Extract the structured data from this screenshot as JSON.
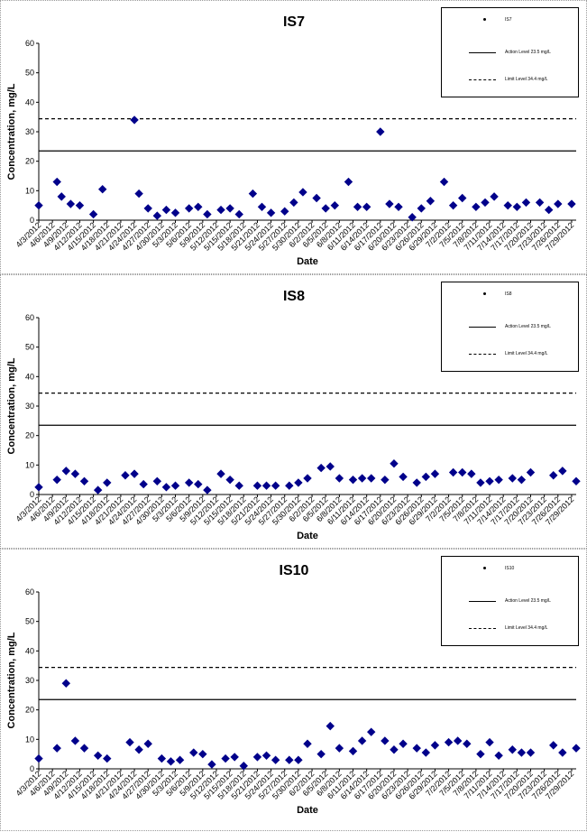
{
  "chart_data": [
    {
      "type": "scatter",
      "title": "IS7",
      "xlabel": "Date",
      "ylabel": "Concentration, mg/L",
      "ylim": [
        0,
        60
      ],
      "yticks": [
        0,
        10,
        20,
        30,
        40,
        50,
        60
      ],
      "xlim": [
        "4/3/2012",
        "7/30/2012"
      ],
      "x_tick_labels": [
        "4/3/2012",
        "4/6/2012",
        "4/9/2012",
        "4/12/2012",
        "4/15/2012",
        "4/18/2012",
        "4/21/2012",
        "4/24/2012",
        "4/27/2012",
        "4/30/2012",
        "5/3/2012",
        "5/6/2012",
        "5/9/2012",
        "5/12/2012",
        "5/15/2012",
        "5/18/2012",
        "5/21/2012",
        "5/24/2012",
        "5/27/2012",
        "5/30/2012",
        "6/2/2012",
        "6/5/2012",
        "6/8/2012",
        "6/11/2012",
        "6/14/2012",
        "6/17/2012",
        "6/20/2012",
        "6/23/2012",
        "6/26/2012",
        "6/29/2012",
        "7/2/2012",
        "7/5/2012",
        "7/8/2012",
        "7/11/2012",
        "7/14/2012",
        "7/17/2012",
        "7/20/2012",
        "7/23/2012",
        "7/26/2012",
        "7/29/2012"
      ],
      "series": [
        {
          "name": "IS7",
          "marker": "diamond",
          "color": "#00008B",
          "x": [
            "4/3/2012",
            "4/7/2012",
            "4/8/2012",
            "4/10/2012",
            "4/12/2012",
            "4/15/2012",
            "4/17/2012",
            "4/24/2012",
            "4/25/2012",
            "4/27/2012",
            "4/29/2012",
            "5/1/2012",
            "5/3/2012",
            "5/6/2012",
            "5/8/2012",
            "5/10/2012",
            "5/13/2012",
            "5/15/2012",
            "5/17/2012",
            "5/20/2012",
            "5/22/2012",
            "5/24/2012",
            "5/27/2012",
            "5/29/2012",
            "5/31/2012",
            "6/3/2012",
            "6/5/2012",
            "6/7/2012",
            "6/10/2012",
            "6/12/2012",
            "6/14/2012",
            "6/17/2012",
            "6/19/2012",
            "6/21/2012",
            "6/24/2012",
            "6/26/2012",
            "6/28/2012",
            "7/1/2012",
            "7/3/2012",
            "7/5/2012",
            "7/8/2012",
            "7/10/2012",
            "7/12/2012",
            "7/15/2012",
            "7/17/2012",
            "7/19/2012",
            "7/22/2012",
            "7/24/2012",
            "7/26/2012",
            "7/29/2012"
          ],
          "y": [
            5,
            13,
            8,
            5.5,
            5,
            2,
            10.5,
            34,
            9,
            4,
            1.5,
            3.5,
            2.5,
            4,
            4.5,
            2,
            3.5,
            4,
            2,
            9,
            4.5,
            2.5,
            3,
            6,
            9.5,
            7.5,
            4,
            5,
            13,
            4.5,
            4.5,
            30,
            5.5,
            4.5,
            1,
            4,
            6.5,
            13,
            5,
            7.5,
            4.5,
            6,
            8,
            5,
            4.5,
            6,
            6,
            3.5,
            5.5,
            5.5
          ]
        }
      ],
      "reference_lines": [
        {
          "name": "Action Level 23.5 mg/L",
          "value": 23.5,
          "style": "solid"
        },
        {
          "name": "Limit Level 34.4 mg/L",
          "value": 34.4,
          "style": "dashed"
        }
      ],
      "legend": {
        "position": "top-right",
        "entries": [
          "IS7",
          "Action Level 23.5 mg/L",
          "Limit Level 34.4 mg/L"
        ]
      },
      "grid": false
    },
    {
      "type": "scatter",
      "title": "IS8",
      "xlabel": "Date",
      "ylabel": "Concentration, mg/L",
      "ylim": [
        0,
        60
      ],
      "yticks": [
        0,
        10,
        20,
        30,
        40,
        50,
        60
      ],
      "xlim": [
        "4/3/2012",
        "7/30/2012"
      ],
      "x_tick_labels": [
        "4/3/2012",
        "4/6/2012",
        "4/9/2012",
        "4/12/2012",
        "4/15/2012",
        "4/18/2012",
        "4/21/2012",
        "4/24/2012",
        "4/27/2012",
        "4/30/2012",
        "5/3/2012",
        "5/6/2012",
        "5/9/2012",
        "5/12/2012",
        "5/15/2012",
        "5/18/2012",
        "5/21/2012",
        "5/24/2012",
        "5/27/2012",
        "5/30/2012",
        "6/2/2012",
        "6/5/2012",
        "6/8/2012",
        "6/11/2012",
        "6/14/2012",
        "6/17/2012",
        "6/20/2012",
        "6/23/2012",
        "6/26/2012",
        "6/29/2012",
        "7/2/2012",
        "7/5/2012",
        "7/8/2012",
        "7/11/2012",
        "7/14/2012",
        "7/17/2012",
        "7/20/2012",
        "7/23/2012",
        "7/26/2012",
        "7/29/2012"
      ],
      "series": [
        {
          "name": "IS8",
          "marker": "diamond",
          "color": "#00008B",
          "x": [
            "4/3/2012",
            "4/7/2012",
            "4/9/2012",
            "4/11/2012",
            "4/13/2012",
            "4/16/2012",
            "4/18/2012",
            "4/22/2012",
            "4/24/2012",
            "4/26/2012",
            "4/29/2012",
            "5/1/2012",
            "5/3/2012",
            "5/6/2012",
            "5/8/2012",
            "5/10/2012",
            "5/13/2012",
            "5/15/2012",
            "5/17/2012",
            "5/21/2012",
            "5/23/2012",
            "5/25/2012",
            "5/28/2012",
            "5/30/2012",
            "6/1/2012",
            "6/4/2012",
            "6/6/2012",
            "6/8/2012",
            "6/11/2012",
            "6/13/2012",
            "6/15/2012",
            "6/18/2012",
            "6/20/2012",
            "6/22/2012",
            "6/25/2012",
            "6/27/2012",
            "6/29/2012",
            "7/3/2012",
            "7/5/2012",
            "7/7/2012",
            "7/9/2012",
            "7/11/2012",
            "7/13/2012",
            "7/16/2012",
            "7/18/2012",
            "7/20/2012",
            "7/25/2012",
            "7/27/2012",
            "7/30/2012"
          ],
          "y": [
            2.5,
            5,
            8,
            7,
            4.5,
            1.5,
            4,
            6.5,
            7,
            3.5,
            4.5,
            2.5,
            3,
            4,
            3.5,
            1.5,
            7,
            5,
            3,
            3,
            3,
            3,
            3,
            4,
            5.5,
            9,
            9.5,
            5.5,
            5,
            5.5,
            5.5,
            5,
            10.5,
            6,
            4,
            6,
            7,
            7.5,
            7.5,
            7,
            4,
            4.5,
            5,
            5.5,
            5,
            7.5,
            6.5,
            8,
            4.5
          ]
        }
      ],
      "reference_lines": [
        {
          "name": "Action Level 23.5 mg/L",
          "value": 23.5,
          "style": "solid"
        },
        {
          "name": "Limit Level 34.4 mg/L",
          "value": 34.4,
          "style": "dashed"
        }
      ],
      "legend": {
        "position": "top-right",
        "entries": [
          "IS8",
          "Action Level 23.5 mg/L",
          "Limit Level 34.4 mg/L"
        ]
      },
      "grid": false
    },
    {
      "type": "scatter",
      "title": "IS10",
      "xlabel": "Date",
      "ylabel": "Concentration, mg/L",
      "ylim": [
        0,
        60
      ],
      "yticks": [
        0,
        10,
        20,
        30,
        40,
        50,
        60
      ],
      "xlim": [
        "4/3/2012",
        "7/30/2012"
      ],
      "x_tick_labels": [
        "4/3/2012",
        "4/6/2012",
        "4/9/2012",
        "4/12/2012",
        "4/15/2012",
        "4/18/2012",
        "4/21/2012",
        "4/24/2012",
        "4/27/2012",
        "4/30/2012",
        "5/3/2012",
        "5/6/2012",
        "5/9/2012",
        "5/12/2012",
        "5/15/2012",
        "5/18/2012",
        "5/21/2012",
        "5/24/2012",
        "5/27/2012",
        "5/30/2012",
        "6/2/2012",
        "6/5/2012",
        "6/8/2012",
        "6/11/2012",
        "6/14/2012",
        "6/17/2012",
        "6/20/2012",
        "6/23/2012",
        "6/26/2012",
        "6/29/2012",
        "7/2/2012",
        "7/5/2012",
        "7/8/2012",
        "7/11/2012",
        "7/14/2012",
        "7/17/2012",
        "7/20/2012",
        "7/23/2012",
        "7/26/2012",
        "7/29/2012"
      ],
      "series": [
        {
          "name": "IS10",
          "marker": "diamond",
          "color": "#00008B",
          "x": [
            "4/3/2012",
            "4/7/2012",
            "4/9/2012",
            "4/11/2012",
            "4/13/2012",
            "4/16/2012",
            "4/18/2012",
            "4/23/2012",
            "4/25/2012",
            "4/27/2012",
            "4/30/2012",
            "5/2/2012",
            "5/4/2012",
            "5/7/2012",
            "5/9/2012",
            "5/11/2012",
            "5/14/2012",
            "5/16/2012",
            "5/18/2012",
            "5/21/2012",
            "5/23/2012",
            "5/25/2012",
            "5/28/2012",
            "5/30/2012",
            "6/1/2012",
            "6/4/2012",
            "6/6/2012",
            "6/8/2012",
            "6/11/2012",
            "6/13/2012",
            "6/15/2012",
            "6/18/2012",
            "6/20/2012",
            "6/22/2012",
            "6/25/2012",
            "6/27/2012",
            "6/29/2012",
            "7/2/2012",
            "7/4/2012",
            "7/6/2012",
            "7/9/2012",
            "7/11/2012",
            "7/13/2012",
            "7/16/2012",
            "7/18/2012",
            "7/20/2012",
            "7/25/2012",
            "7/27/2012",
            "7/30/2012"
          ],
          "y": [
            3.5,
            7,
            29,
            9.5,
            7,
            4.5,
            3.5,
            9,
            6.5,
            8.5,
            3.5,
            2.5,
            3,
            5.5,
            5,
            1.5,
            3.5,
            4,
            1,
            4,
            4.5,
            3,
            3,
            3,
            8.5,
            5,
            14.5,
            7,
            6,
            9.5,
            12.5,
            9.5,
            6.5,
            8.5,
            7,
            5.5,
            8,
            9,
            9.5,
            8.5,
            5,
            9,
            4.5,
            6.5,
            5.5,
            5.5,
            8,
            5.5,
            7
          ]
        }
      ],
      "reference_lines": [
        {
          "name": "Action Level 23.5 mg/L",
          "value": 23.5,
          "style": "solid"
        },
        {
          "name": "Limit Level 34.4 mg/L",
          "value": 34.4,
          "style": "dashed"
        }
      ],
      "legend": {
        "position": "top-right",
        "entries": [
          "IS10",
          "Action Level 23.5 mg/L",
          "Limit Level 34.4 mg/L"
        ]
      },
      "grid": false
    }
  ]
}
